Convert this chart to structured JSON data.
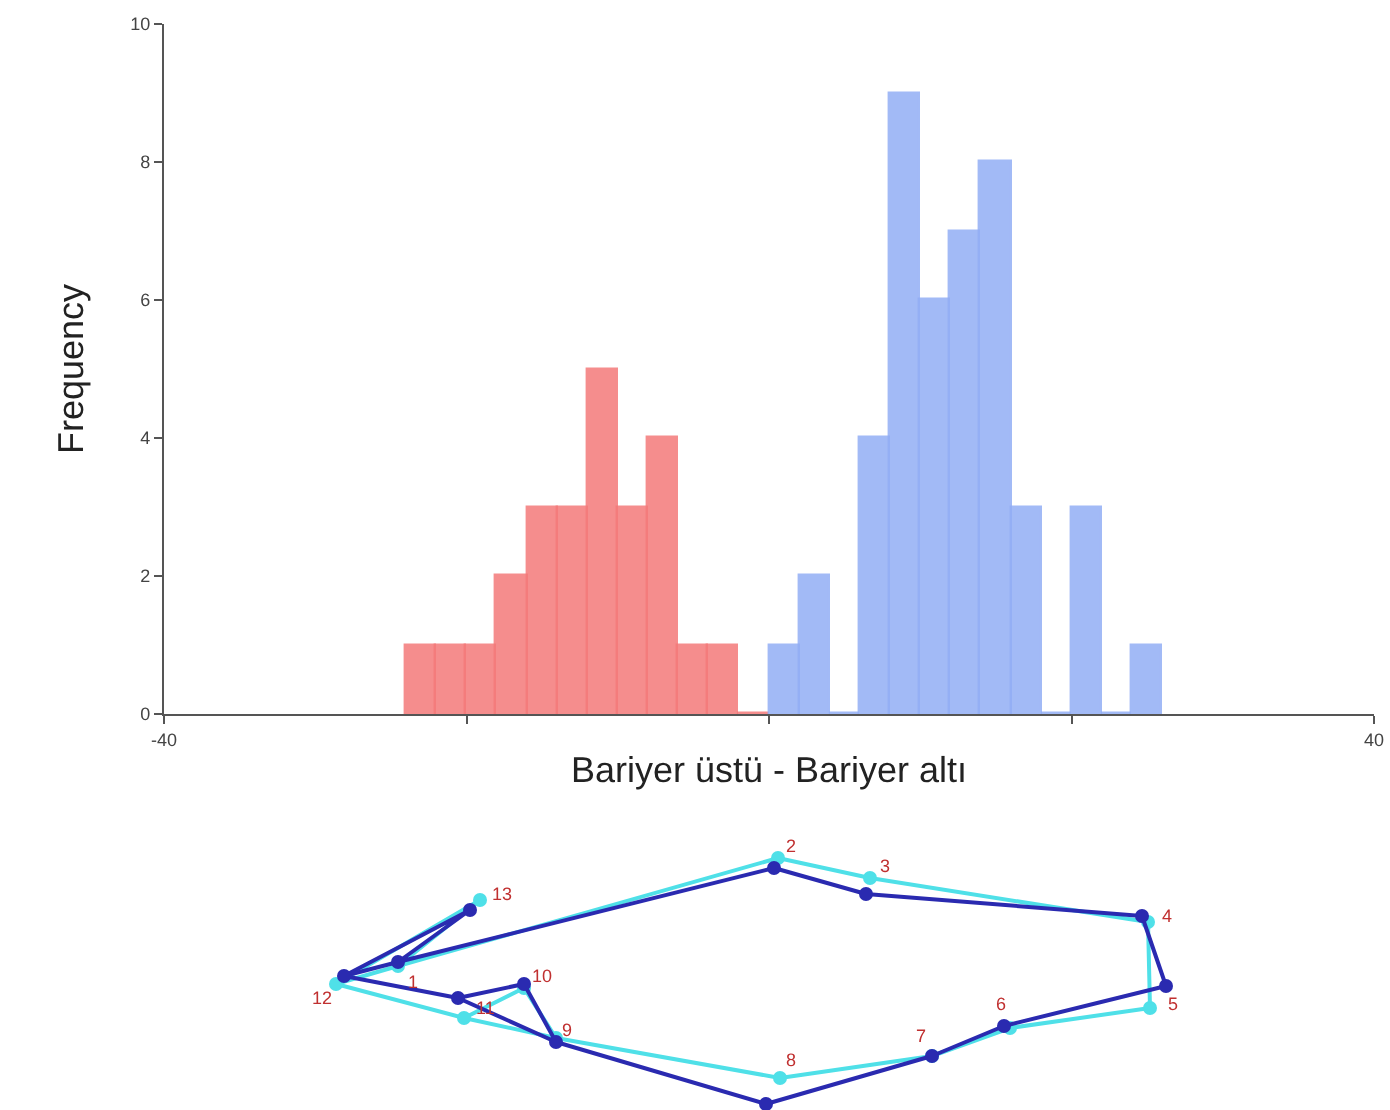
{
  "chart_data": [
    {
      "type": "histogram",
      "xlabel": "Bariyer üstü - Bariyer altı",
      "ylabel": "Frequency",
      "bins": [
        -24,
        -22,
        -20,
        -18,
        -16,
        -14,
        -12,
        -10,
        -8,
        -6,
        -4,
        -2,
        0,
        2,
        4,
        6,
        8,
        10,
        12,
        14,
        16,
        18,
        20,
        22,
        24,
        26
      ],
      "values": [
        1,
        1,
        1,
        2,
        3,
        3,
        5,
        3,
        4,
        1,
        1,
        0,
        1,
        2,
        0,
        4,
        9,
        6,
        7,
        8,
        3,
        0,
        3,
        0,
        1
      ],
      "colors": [
        "#f47a7a",
        "#f47a7a",
        "#f47a7a",
        "#f47a7a",
        "#f47a7a",
        "#f47a7a",
        "#f47a7a",
        "#f47a7a",
        "#f47a7a",
        "#f47a7a",
        "#f47a7a",
        "#f47a7a",
        "#92aef5",
        "#92aef5",
        "#92aef5",
        "#92aef5",
        "#92aef5",
        "#92aef5",
        "#92aef5",
        "#92aef5",
        "#92aef5",
        "#92aef5",
        "#92aef5",
        "#92aef5",
        "#92aef5"
      ],
      "xlim": [
        -40,
        40
      ],
      "xticks": [
        -40,
        {
          "value": -20,
          "label": null
        },
        {
          "value": 0,
          "label": null
        },
        {
          "value": 20,
          "label": null
        },
        40
      ],
      "ylim": [
        0,
        10
      ],
      "yticks": [
        0,
        2,
        4,
        6,
        8,
        10
      ],
      "grid": false
    },
    {
      "type": "other",
      "annotations": [
        "1",
        "2",
        "3",
        "4",
        "5",
        "6",
        "7",
        "8",
        "9",
        "10",
        "11",
        "12",
        "13"
      ]
    }
  ]
}
